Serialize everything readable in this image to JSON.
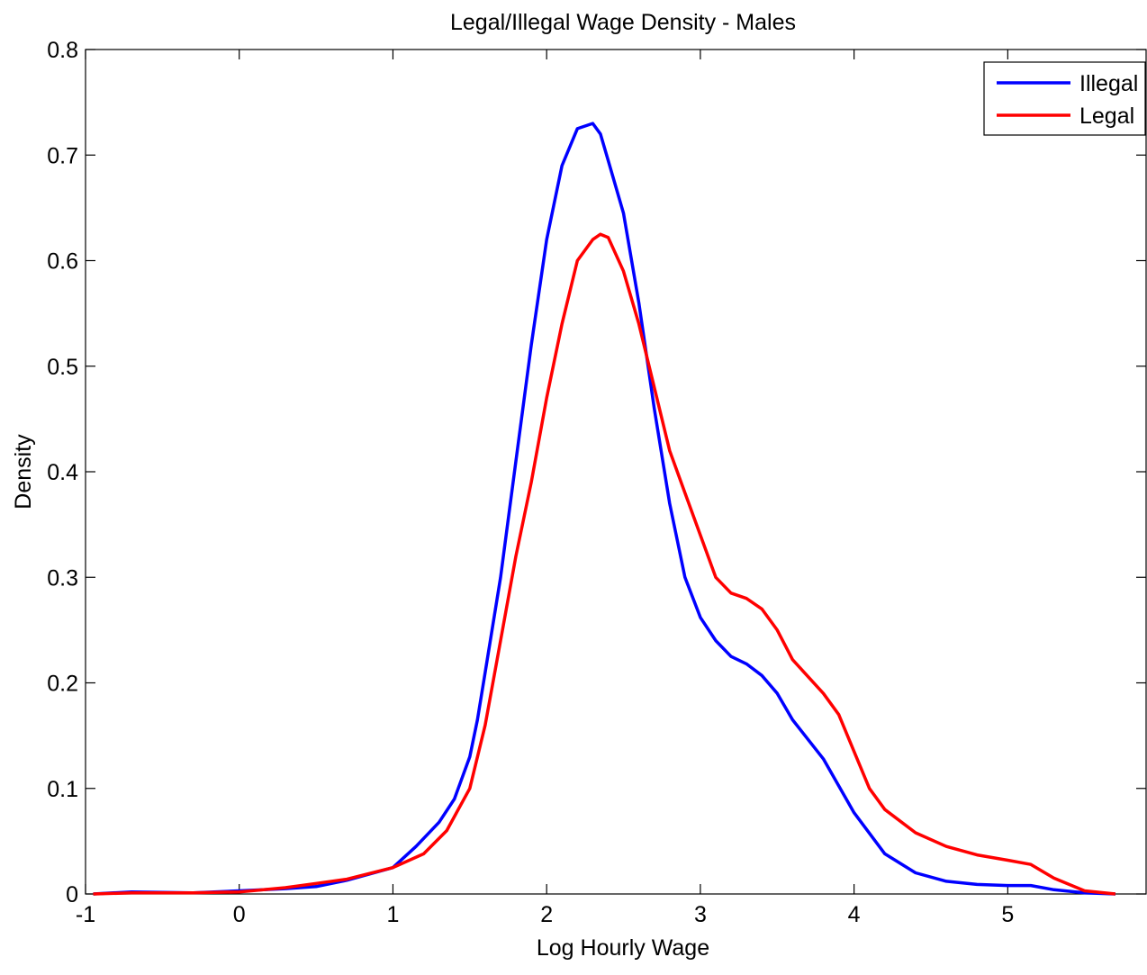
{
  "chart_data": {
    "type": "line",
    "title": "Legal/Illegal Wage Density - Males",
    "xlabel": "Log Hourly Wage",
    "ylabel": "Density",
    "xlim": [
      -1,
      5.9
    ],
    "ylim": [
      0,
      0.8
    ],
    "xticks": [
      -1,
      0,
      1,
      2,
      3,
      4,
      5
    ],
    "yticks": [
      0,
      0.1,
      0.2,
      0.3,
      0.4,
      0.5,
      0.6,
      0.7,
      0.8
    ],
    "xtick_labels": [
      "-1",
      "0",
      "1",
      "2",
      "3",
      "4",
      "5"
    ],
    "ytick_labels": [
      "0",
      "0.1",
      "0.2",
      "0.3",
      "0.4",
      "0.5",
      "0.6",
      "0.7",
      "0.8"
    ],
    "grid": false,
    "legend_position": "top-right",
    "series": [
      {
        "name": "Illegal",
        "color": "#0000ff",
        "x": [
          -0.95,
          -0.7,
          -0.3,
          0.0,
          0.3,
          0.5,
          0.7,
          1.0,
          1.15,
          1.3,
          1.4,
          1.5,
          1.55,
          1.6,
          1.7,
          1.8,
          1.9,
          2.0,
          2.1,
          2.2,
          2.3,
          2.35,
          2.4,
          2.5,
          2.6,
          2.7,
          2.8,
          2.9,
          3.0,
          3.1,
          3.2,
          3.3,
          3.4,
          3.5,
          3.6,
          3.8,
          4.0,
          4.2,
          4.4,
          4.6,
          4.8,
          5.0,
          5.15,
          5.3,
          5.5,
          5.7
        ],
        "values": [
          0.0,
          0.002,
          0.001,
          0.003,
          0.005,
          0.007,
          0.013,
          0.025,
          0.045,
          0.068,
          0.09,
          0.13,
          0.165,
          0.21,
          0.3,
          0.41,
          0.52,
          0.62,
          0.69,
          0.725,
          0.73,
          0.72,
          0.695,
          0.645,
          0.56,
          0.46,
          0.37,
          0.3,
          0.262,
          0.24,
          0.225,
          0.218,
          0.207,
          0.19,
          0.165,
          0.128,
          0.077,
          0.038,
          0.02,
          0.012,
          0.009,
          0.008,
          0.008,
          0.004,
          0.001,
          0.0
        ]
      },
      {
        "name": "Legal",
        "color": "#ff0000",
        "x": [
          -0.95,
          -0.7,
          -0.3,
          0.0,
          0.3,
          0.5,
          0.7,
          1.0,
          1.2,
          1.35,
          1.5,
          1.6,
          1.7,
          1.8,
          1.9,
          2.0,
          2.1,
          2.2,
          2.3,
          2.35,
          2.4,
          2.5,
          2.6,
          2.7,
          2.8,
          2.9,
          3.0,
          3.1,
          3.2,
          3.3,
          3.4,
          3.5,
          3.6,
          3.8,
          3.9,
          4.0,
          4.1,
          4.2,
          4.4,
          4.6,
          4.8,
          5.0,
          5.15,
          5.3,
          5.5,
          5.7
        ],
        "values": [
          0.0,
          0.001,
          0.001,
          0.002,
          0.006,
          0.01,
          0.014,
          0.025,
          0.038,
          0.06,
          0.1,
          0.16,
          0.24,
          0.32,
          0.39,
          0.47,
          0.54,
          0.6,
          0.62,
          0.625,
          0.622,
          0.59,
          0.54,
          0.48,
          0.42,
          0.38,
          0.34,
          0.3,
          0.285,
          0.28,
          0.27,
          0.25,
          0.222,
          0.19,
          0.17,
          0.135,
          0.1,
          0.08,
          0.058,
          0.045,
          0.037,
          0.032,
          0.028,
          0.015,
          0.003,
          0.0
        ]
      }
    ]
  }
}
